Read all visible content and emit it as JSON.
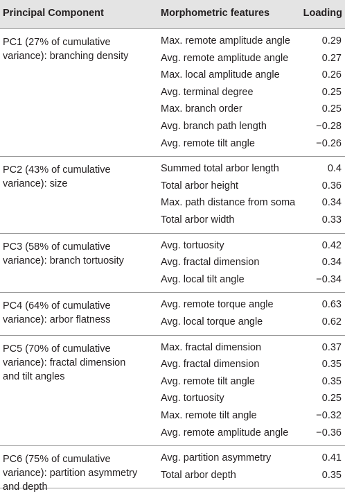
{
  "headers": {
    "component": "Principal Component",
    "features": "Morphometric features",
    "loading": "Loading"
  },
  "groups": [
    {
      "label": "PC1 (27% of cumulative variance): branching density",
      "rows": [
        {
          "feature": "Max. remote amplitude angle",
          "loading": "0.29"
        },
        {
          "feature": "Avg. remote amplitude angle",
          "loading": "0.27"
        },
        {
          "feature": "Max. local amplitude angle",
          "loading": "0.26"
        },
        {
          "feature": "Avg. terminal degree",
          "loading": "0.25"
        },
        {
          "feature": "Max. branch order",
          "loading": "0.25"
        },
        {
          "feature": "Avg. branch path length",
          "loading": "−0.28"
        },
        {
          "feature": "Avg. remote tilt angle",
          "loading": "−0.26"
        }
      ]
    },
    {
      "label": "PC2 (43% of cumulative variance): size",
      "rows": [
        {
          "feature": "Summed total arbor length",
          "loading": "0.4"
        },
        {
          "feature": "Total arbor height",
          "loading": "0.36"
        },
        {
          "feature": "Max. path distance from soma",
          "loading": "0.34"
        },
        {
          "feature": "Total arbor width",
          "loading": "0.33"
        }
      ]
    },
    {
      "label": "PC3 (58% of cumulative variance): branch tortuosity",
      "rows": [
        {
          "feature": "Avg. tortuosity",
          "loading": "0.42"
        },
        {
          "feature": "Avg. fractal dimension",
          "loading": "0.34"
        },
        {
          "feature": "Avg. local tilt angle",
          "loading": "−0.34"
        }
      ]
    },
    {
      "label": "PC4 (64% of cumulative variance): arbor flatness",
      "rows": [
        {
          "feature": "Avg. remote torque angle",
          "loading": "0.63"
        },
        {
          "feature": "Avg. local torque angle",
          "loading": "0.62"
        }
      ]
    },
    {
      "label": "PC5 (70% of cumulative variance): fractal dimension and tilt angles",
      "rows": [
        {
          "feature": "Max. fractal dimension",
          "loading": "0.37"
        },
        {
          "feature": "Avg. fractal dimension",
          "loading": "0.35"
        },
        {
          "feature": "Avg. remote tilt angle",
          "loading": "0.35"
        },
        {
          "feature": "Avg. tortuosity",
          "loading": "0.25"
        },
        {
          "feature": "Max. remote tilt angle",
          "loading": "−0.32"
        },
        {
          "feature": "Avg. remote amplitude angle",
          "loading": "−0.36"
        }
      ]
    },
    {
      "label": "PC6 (75% of cumulative variance): partition asymmetry and depth",
      "rows": [
        {
          "feature": "Avg. partition asymmetry",
          "loading": "0.41"
        },
        {
          "feature": "Total arbor depth",
          "loading": "0.35"
        }
      ]
    }
  ]
}
